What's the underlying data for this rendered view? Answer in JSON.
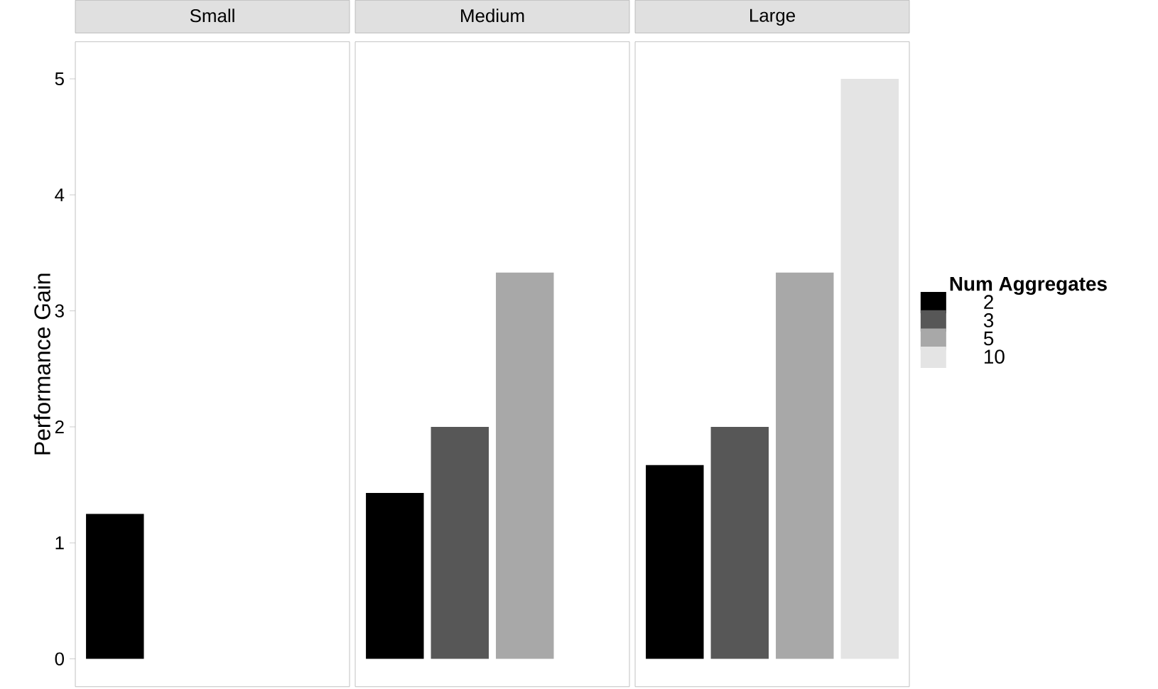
{
  "chart_data": {
    "type": "bar",
    "ylabel": "Performance Gain",
    "categories": [
      "Small",
      "Medium",
      "Large"
    ],
    "ylim": [
      -0.24,
      5.32
    ],
    "yticks": [
      0,
      1,
      2,
      3,
      4,
      5
    ],
    "legend": "right",
    "legend_title": "Num Aggregates",
    "series": [
      {
        "name": "2",
        "color": "#000000",
        "values": [
          1.25,
          1.43,
          1.67
        ]
      },
      {
        "name": "3",
        "color": "#575757",
        "values": [
          null,
          2.0,
          2.0
        ]
      },
      {
        "name": "5",
        "color": "#a8a8a8",
        "values": [
          null,
          3.33,
          3.33
        ]
      },
      {
        "name": "10",
        "color": "#e4e4e4",
        "values": [
          null,
          null,
          5.0
        ]
      }
    ]
  }
}
